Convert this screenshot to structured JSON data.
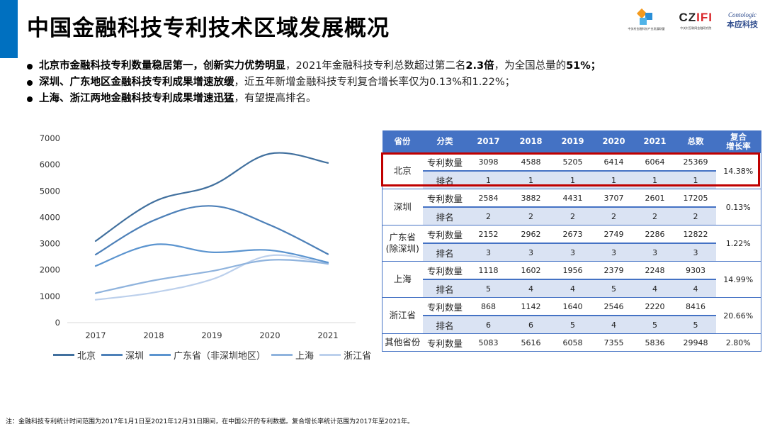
{
  "header": {
    "title": "中国金融科技专利技术区域发展概况",
    "logos": [
      {
        "name": "中关村金融科技产业发展联盟",
        "sub": "中关村金融科技产业发展联盟"
      },
      {
        "name": "CZIFI",
        "sub": "中关村互联网金融研究院"
      },
      {
        "name": "Contologic",
        "sub": "本应科技"
      }
    ]
  },
  "bullets": [
    {
      "bold": "北京市金融科技专利数量稳居第一，创新实力优势明显",
      "normal": "，2021年金融科技专利总数超过第二名",
      "bold2": "2.3倍",
      "normal2": "，为全国总量的",
      "bold3": "51%；"
    },
    {
      "bold": "深圳、广东地区金融科技专利成果增速放缓",
      "normal": "，近五年新增金融科技专利复合增长率仅为0.13%和1.22%；"
    },
    {
      "bold": "上海、浙江两地金融科技专利成果增速迅猛",
      "normal": "，有望提高排名。"
    }
  ],
  "chart_data": {
    "type": "line",
    "smooth": true,
    "title": "",
    "xlabel": "",
    "ylabel": "",
    "categories": [
      "2017",
      "2018",
      "2019",
      "2020",
      "2021"
    ],
    "ylim": [
      0,
      7000
    ],
    "yticks": [
      "0",
      "1000",
      "2000",
      "3000",
      "4000",
      "5000",
      "6000",
      "7000"
    ],
    "grid": false,
    "legend_position": "bottom",
    "series": [
      {
        "name": "北京",
        "values": [
          3098,
          4588,
          5205,
          6414,
          6064
        ],
        "color": "#41709e"
      },
      {
        "name": "深圳",
        "values": [
          2584,
          3882,
          4431,
          3707,
          2601
        ],
        "color": "#4d80b8"
      },
      {
        "name": "广东省（非深圳地区）",
        "values": [
          2152,
          2962,
          2673,
          2749,
          2286
        ],
        "color": "#5b94cf"
      },
      {
        "name": "上海",
        "values": [
          1118,
          1602,
          1956,
          2379,
          2248
        ],
        "color": "#8fb3dd"
      },
      {
        "name": "浙江省",
        "values": [
          868,
          1142,
          1640,
          2546,
          2220
        ],
        "color": "#bcd0ec"
      }
    ]
  },
  "table": {
    "headers": [
      "省份",
      "分类",
      "2017",
      "2018",
      "2019",
      "2020",
      "2021",
      "总数",
      "复合增长率"
    ],
    "header_growth_lines": [
      "复合",
      "增长率"
    ],
    "groups": [
      {
        "province": "北京",
        "province_sub": "",
        "growth": "14.38%",
        "highlight": true,
        "rows": [
          {
            "category": "专利数量",
            "values": [
              "3098",
              "4588",
              "5205",
              "6414",
              "6064",
              "25369"
            ]
          },
          {
            "category": "排名",
            "values": [
              "1",
              "1",
              "1",
              "1",
              "1",
              "1"
            ]
          }
        ]
      },
      {
        "province": "深圳",
        "province_sub": "",
        "growth": "0.13%",
        "rows": [
          {
            "category": "专利数量",
            "values": [
              "2584",
              "3882",
              "4431",
              "3707",
              "2601",
              "17205"
            ]
          },
          {
            "category": "排名",
            "values": [
              "2",
              "2",
              "2",
              "2",
              "2",
              "2"
            ]
          }
        ]
      },
      {
        "province": "广东省",
        "province_sub": "(除深圳)",
        "growth": "1.22%",
        "rows": [
          {
            "category": "专利数量",
            "values": [
              "2152",
              "2962",
              "2673",
              "2749",
              "2286",
              "12822"
            ]
          },
          {
            "category": "排名",
            "values": [
              "3",
              "3",
              "3",
              "3",
              "3",
              "3"
            ]
          }
        ]
      },
      {
        "province": "上海",
        "province_sub": "",
        "growth": "14.99%",
        "rows": [
          {
            "category": "专利数量",
            "values": [
              "1118",
              "1602",
              "1956",
              "2379",
              "2248",
              "9303"
            ]
          },
          {
            "category": "排名",
            "values": [
              "5",
              "4",
              "4",
              "5",
              "4",
              "4"
            ]
          }
        ]
      },
      {
        "province": "浙江省",
        "province_sub": "",
        "growth": "20.66%",
        "rows": [
          {
            "category": "专利数量",
            "values": [
              "868",
              "1142",
              "1640",
              "2546",
              "2220",
              "8416"
            ]
          },
          {
            "category": "排名",
            "values": [
              "6",
              "6",
              "5",
              "4",
              "5",
              "5"
            ]
          }
        ]
      }
    ],
    "other": {
      "province": "其他省份",
      "category": "专利数量",
      "values": [
        "5083",
        "5616",
        "6058",
        "7355",
        "5836",
        "29948"
      ],
      "growth": "2.80%"
    }
  },
  "colors": {
    "accent": "#0070c0",
    "table_header": "#4472c4",
    "rank_row": "#dae3f3",
    "highlight": "#c00000"
  },
  "footnote": "注：金融科技专利统计时间范围为2017年1月1日至2021年12月31日期间，在中国公开的专利数据。复合增长率统计范围为2017年至2021年。"
}
